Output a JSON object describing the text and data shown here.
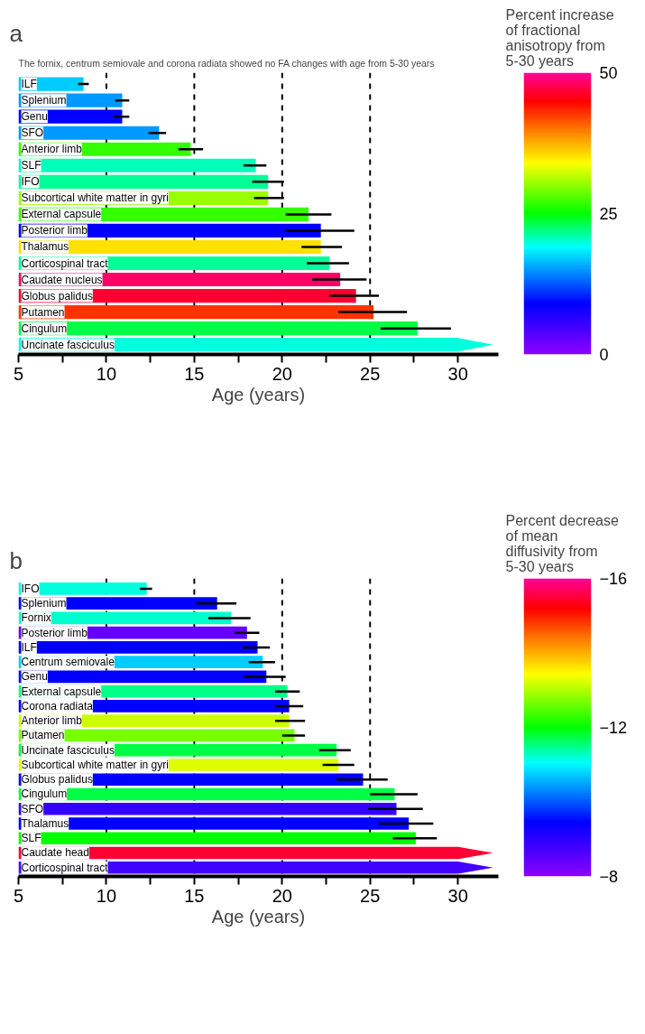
{
  "chart_data": [
    {
      "type": "bar",
      "orientation": "horizontal",
      "title": "a",
      "xlabel": "Age (years)",
      "clabel": "Percent increase of fractional anisotropy from 5-30 years",
      "annotations": [
        "The fornix, centrum semiovale and corona radiata showed no FA changes with age from 5-30 years"
      ],
      "categories": [
        "ILF",
        "Splenium",
        "Genu",
        "SFO",
        "Anterior limb",
        "SLF",
        "IFO",
        "Subcortical white matter in gyri",
        "External capsule",
        "Posterior limb",
        "Thalamus",
        "Corticospinal tract",
        "Caudate nucleus",
        "Globus palidus",
        "Putamen",
        "Cingulum",
        "Uncinate fasciculus"
      ],
      "values": [
        8.7,
        10.9,
        10.9,
        13.0,
        14.8,
        18.5,
        19.2,
        19.2,
        21.5,
        22.2,
        22.2,
        22.7,
        23.3,
        24.2,
        25.2,
        27.7,
        32.0
      ],
      "colors": [
        "#00ccff",
        "#0099ff",
        "#0000ff",
        "#0099ff",
        "#33ff00",
        "#00ffbb",
        "#00ff99",
        "#99ff00",
        "#33ff00",
        "#0000ff",
        "#ffe000",
        "#00ff99",
        "#ff0066",
        "#ff0033",
        "#ff3300",
        "#00ff44",
        "#00ffdd"
      ],
      "errors": [
        [
          8.4,
          9.0
        ],
        [
          10.5,
          11.3
        ],
        [
          10.4,
          11.3
        ],
        [
          12.4,
          13.4
        ],
        [
          14.1,
          15.5
        ],
        [
          17.8,
          19.1
        ],
        [
          18.3,
          20.1
        ],
        [
          18.4,
          20.1
        ],
        [
          20.2,
          22.8
        ],
        [
          20.2,
          24.1
        ],
        [
          21.1,
          23.4
        ],
        [
          21.4,
          23.8
        ],
        [
          21.7,
          24.8
        ],
        [
          22.7,
          25.5
        ],
        [
          23.2,
          27.1
        ],
        [
          25.6,
          29.6
        ],
        null
      ],
      "xlim": [
        5,
        32.3
      ],
      "xticks": [
        5,
        {
          "value": 7.5,
          "label": null
        },
        10,
        {
          "value": 12.5,
          "label": null
        },
        15,
        {
          "value": 17.5,
          "label": null
        },
        20,
        {
          "value": 22.5,
          "label": null
        },
        25,
        {
          "value": 27.5,
          "label": null
        },
        30
      ],
      "clim": [
        0,
        50
      ],
      "cticks": [
        0,
        25,
        50
      ],
      "ref_lines": [
        {
          "axis": "x",
          "value": 10,
          "line_style": "dashed"
        },
        {
          "axis": "x",
          "value": 15,
          "line_style": "dashed"
        },
        {
          "axis": "x",
          "value": 20,
          "line_style": "dashed"
        },
        {
          "axis": "x",
          "value": 25,
          "line_style": "dashed"
        }
      ]
    },
    {
      "type": "bar",
      "orientation": "horizontal",
      "title": "b",
      "xlabel": "Age (years)",
      "clabel": "Percent decrease of mean diffusivity from 5-30 years",
      "categories": [
        "IFO",
        "Splenium",
        "Fornix",
        "Posterior limb",
        "ILF",
        "Centrum semiovale",
        "Genu",
        "External capsule",
        "Corona radiata",
        "Anterior limb",
        "Putamen",
        "Uncinate fasciculus",
        "Subcortical white matter in gyri",
        "Globus palidus",
        "Cingulum",
        "SFO",
        "Thalamus",
        "SLF",
        "Caudate head",
        "Corticospinal tract"
      ],
      "values": [
        12.3,
        16.3,
        17.1,
        18.0,
        18.6,
        18.9,
        19.1,
        20.3,
        20.4,
        20.4,
        20.7,
        23.1,
        23.2,
        24.6,
        26.4,
        26.5,
        27.2,
        27.6,
        32,
        32
      ],
      "colors": [
        "#00ffdd",
        "#0000ff",
        "#00ffcc",
        "#6600ff",
        "#0000ff",
        "#00ccff",
        "#0000ff",
        "#00ff88",
        "#0000ff",
        "#ccff00",
        "#77ff00",
        "#00ff44",
        "#ddff00",
        "#0000ff",
        "#00ff44",
        "#3300ff",
        "#0000ff",
        "#00ff00",
        "#ff0033",
        "#4400ff"
      ],
      "errors": [
        [
          11.9,
          12.6
        ],
        [
          15.1,
          17.4
        ],
        [
          15.8,
          18.2
        ],
        [
          17.3,
          18.7
        ],
        [
          17.7,
          19.3
        ],
        [
          18.1,
          19.6
        ],
        [
          17.8,
          20.2
        ],
        [
          19.6,
          21.0
        ],
        [
          19.6,
          21.2
        ],
        [
          19.6,
          21.3
        ],
        [
          20.0,
          21.3
        ],
        [
          22.1,
          23.9
        ],
        [
          22.3,
          24.1
        ],
        [
          23.1,
          26.0
        ],
        [
          25.0,
          27.7
        ],
        [
          24.9,
          28.0
        ],
        [
          25.5,
          28.6
        ],
        [
          26.3,
          28.8
        ],
        null,
        null
      ],
      "xlim": [
        5,
        32.3
      ],
      "xticks": [
        5,
        {
          "value": 7.5,
          "label": null
        },
        10,
        {
          "value": 12.5,
          "label": null
        },
        15,
        {
          "value": 17.5,
          "label": null
        },
        20,
        {
          "value": 22.5,
          "label": null
        },
        25,
        {
          "value": 27.5,
          "label": null
        },
        30
      ],
      "clim": [
        -8,
        -16
      ],
      "cticks": [
        -16,
        -12,
        -8
      ],
      "ref_lines": [
        {
          "axis": "x",
          "value": 10,
          "line_style": "dashed"
        },
        {
          "axis": "x",
          "value": 15,
          "line_style": "dashed"
        },
        {
          "axis": "x",
          "value": 20,
          "line_style": "dashed"
        },
        {
          "axis": "x",
          "value": 25,
          "line_style": "dashed"
        }
      ]
    }
  ]
}
